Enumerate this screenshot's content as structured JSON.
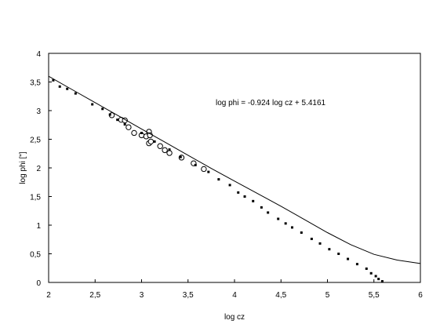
{
  "chart_data": {
    "type": "scatter",
    "title": "",
    "xlabel": "log cz",
    "ylabel": "log phi  [\"]",
    "xlim": [
      2,
      6
    ],
    "ylim": [
      0,
      4
    ],
    "x_ticks": [
      "2",
      "2,5",
      "3",
      "3,5",
      "4",
      "4,5",
      "5",
      "5,5",
      "6"
    ],
    "y_ticks": [
      "0",
      "0,5",
      "1",
      "1,5",
      "2",
      "2,5",
      "3",
      "3,5",
      "4"
    ],
    "grid": false,
    "legend": "none",
    "annotation": "log phi = -0.924 log cz  + 5.4161",
    "series": [
      {
        "style": "open-circles",
        "points": [
          [
            2.68,
            2.92
          ],
          [
            2.78,
            2.84
          ],
          [
            2.82,
            2.83
          ],
          [
            2.86,
            2.71
          ],
          [
            2.92,
            2.61
          ],
          [
            3.0,
            2.57
          ],
          [
            3.05,
            2.55
          ],
          [
            3.08,
            2.63
          ],
          [
            3.09,
            2.57
          ],
          [
            3.08,
            2.43
          ],
          [
            3.1,
            2.46
          ],
          [
            3.2,
            2.38
          ],
          [
            3.25,
            2.31
          ],
          [
            3.3,
            2.26
          ],
          [
            3.43,
            2.18
          ],
          [
            3.56,
            2.08
          ],
          [
            3.67,
            1.98
          ]
        ]
      },
      {
        "style": "small-dots",
        "points": [
          [
            2.05,
            3.53
          ],
          [
            2.12,
            3.42
          ],
          [
            2.2,
            3.38
          ],
          [
            2.29,
            3.3
          ],
          [
            2.47,
            3.11
          ],
          [
            2.58,
            3.03
          ],
          [
            2.66,
            2.93
          ],
          [
            2.74,
            2.84
          ],
          [
            2.82,
            2.76
          ],
          [
            3.0,
            2.61
          ],
          [
            3.14,
            2.46
          ],
          [
            3.3,
            2.32
          ],
          [
            3.42,
            2.19
          ],
          [
            3.58,
            2.05
          ],
          [
            3.72,
            1.93
          ],
          [
            3.83,
            1.8
          ],
          [
            3.95,
            1.7
          ],
          [
            4.04,
            1.57
          ],
          [
            4.11,
            1.5
          ],
          [
            4.2,
            1.42
          ],
          [
            4.29,
            1.31
          ],
          [
            4.36,
            1.22
          ],
          [
            4.47,
            1.11
          ],
          [
            4.55,
            1.03
          ],
          [
            4.62,
            0.96
          ],
          [
            4.72,
            0.87
          ],
          [
            4.83,
            0.76
          ],
          [
            4.92,
            0.68
          ],
          [
            5.02,
            0.58
          ],
          [
            5.12,
            0.5
          ],
          [
            5.22,
            0.41
          ],
          [
            5.32,
            0.32
          ],
          [
            5.42,
            0.24
          ],
          [
            5.47,
            0.16
          ],
          [
            5.52,
            0.11
          ],
          [
            5.55,
            0.06
          ],
          [
            5.59,
            0.02
          ]
        ]
      },
      {
        "style": "solid-line",
        "points": [
          [
            2.0,
            3.6
          ],
          [
            2.25,
            3.37
          ],
          [
            2.5,
            3.14
          ],
          [
            2.75,
            2.91
          ],
          [
            3.0,
            2.68
          ],
          [
            3.25,
            2.45
          ],
          [
            3.5,
            2.22
          ],
          [
            3.75,
            1.99
          ],
          [
            4.0,
            1.77
          ],
          [
            4.25,
            1.55
          ],
          [
            4.5,
            1.33
          ],
          [
            4.75,
            1.1
          ],
          [
            5.0,
            0.87
          ],
          [
            5.25,
            0.66
          ],
          [
            5.5,
            0.49
          ],
          [
            5.75,
            0.39
          ],
          [
            6.0,
            0.33
          ]
        ]
      }
    ]
  }
}
